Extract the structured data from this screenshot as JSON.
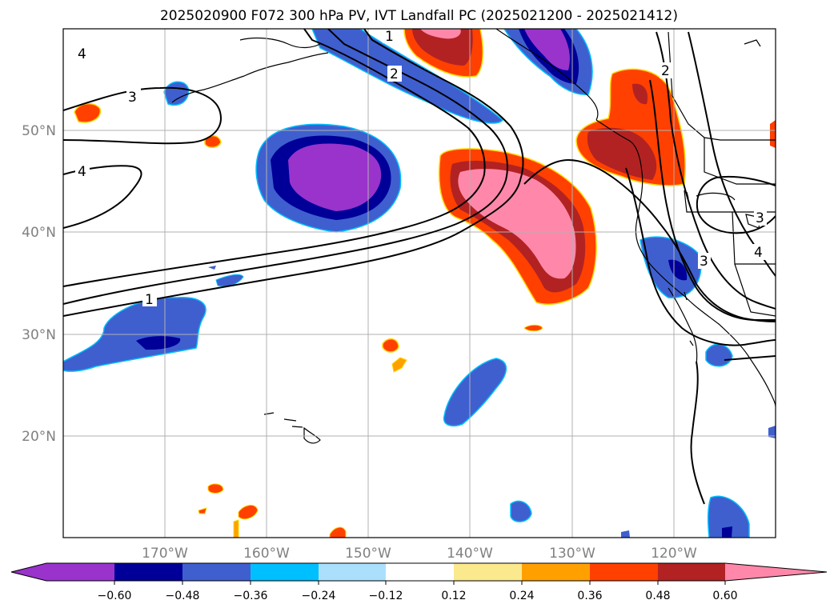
{
  "title": "2025020900 F072 300 hPa PV, IVT Landfall PC (2025021200 - 2025021412)",
  "lat_labels": [
    "50°N",
    "40°N",
    "30°N",
    "20°N"
  ],
  "lon_labels": [
    "170°W",
    "160°W",
    "150°W",
    "140°W",
    "130°W",
    "120°W"
  ],
  "colorbar": {
    "colors": [
      "#9933cc",
      "#000099",
      "#3f5fcf",
      "#00bfff",
      "#aae0fb",
      "#ffffff",
      "#fbe98d",
      "#ffa000",
      "#ff4000",
      "#b22222",
      "#ff88aa"
    ],
    "tick_labels": [
      "-0.60",
      "-0.48",
      "-0.36",
      "-0.24",
      "-0.12",
      "0.12",
      "0.24",
      "0.36",
      "0.48",
      "0.60"
    ]
  },
  "contour_labels": [
    "4",
    "3",
    "4",
    "1",
    "2",
    "1",
    "2",
    "3",
    "3",
    "4"
  ]
}
